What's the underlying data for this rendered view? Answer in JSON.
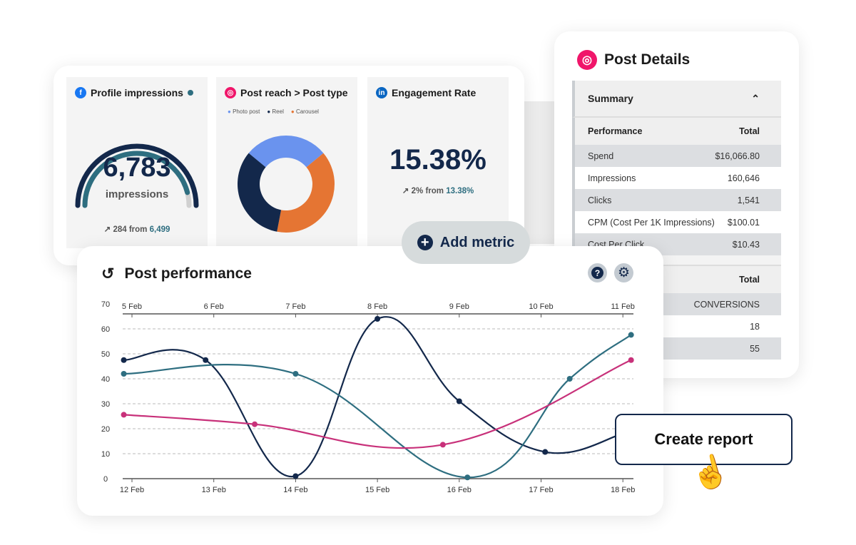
{
  "colors": {
    "navy": "#13284b",
    "teal": "#2e6e80",
    "pink": "#c8317a",
    "light_blue": "#6a93ee",
    "orange": "#e57533",
    "instagram": "#f0166a",
    "facebook": "#1877f2",
    "linkedin": "#0a66c2"
  },
  "widgets": {
    "impressions": {
      "title": "Profile impressions",
      "value": "6,783",
      "unit": "impressions",
      "change": "284",
      "from_label": "from",
      "from_value": "6,499",
      "icon": "facebook-icon",
      "gauge_fraction": 0.92
    },
    "reach": {
      "title": "Post reach > Post type",
      "icon": "instagram-icon",
      "legend": [
        "Photo post",
        "Reel",
        "Carousel"
      ],
      "chart_data": {
        "type": "pie",
        "categories": [
          "Photo post",
          "Reel",
          "Carousel"
        ],
        "values": [
          28,
          33,
          39
        ]
      }
    },
    "engagement": {
      "title": "Engagement Rate",
      "icon": "linkedin-icon",
      "value": "15.38%",
      "change": "2%",
      "from_label": "from",
      "from_value": "13.38%"
    }
  },
  "add_metric": "Add metric",
  "details": {
    "title": "Post Details",
    "section": "Summary",
    "header": [
      "Performance",
      "Total"
    ],
    "rows": [
      [
        "Spend",
        "$16,066.80"
      ],
      [
        "Impressions",
        "160,646"
      ],
      [
        "Clicks",
        "1,541"
      ],
      [
        "CPM (Cost Per 1K Impressions)",
        "$100.01"
      ],
      [
        "Cost Per Click",
        "$10.43"
      ]
    ],
    "header2": [
      "",
      "Total"
    ],
    "rows2": [
      [
        "",
        "CONVERSIONS"
      ],
      [
        "",
        "18"
      ],
      [
        "",
        "55"
      ]
    ]
  },
  "performance": {
    "title": "Post performance"
  },
  "create_report": "Create report",
  "chart_data": {
    "type": "line",
    "ylim": [
      0,
      70
    ],
    "yticks": [
      0,
      10,
      20,
      30,
      40,
      50,
      60,
      70
    ],
    "x_bottom_ticks": [
      "12 Feb",
      "13 Feb",
      "14 Feb",
      "15 Feb",
      "16 Feb",
      "17 Feb",
      "18 Feb"
    ],
    "x_top_ticks": [
      "5 Feb",
      "6 Feb",
      "7 Feb",
      "8 Feb",
      "9 Feb",
      "10 Feb",
      "11 Feb"
    ],
    "grid": true,
    "series": [
      {
        "color": "#13284b",
        "points": [
          [
            11.9,
            47.5
          ],
          [
            12.9,
            47.5
          ],
          [
            14,
            1
          ],
          [
            15,
            64
          ],
          [
            16,
            31
          ],
          [
            17.05,
            10.7
          ],
          [
            18,
            18
          ]
        ]
      },
      {
        "color": "#2e6e80",
        "points": [
          [
            11.9,
            42
          ],
          [
            14,
            42
          ],
          [
            16.1,
            0.5
          ],
          [
            17.35,
            40
          ],
          [
            18.1,
            57.6
          ]
        ]
      },
      {
        "color": "#c8317a",
        "points": [
          [
            11.9,
            25.6
          ],
          [
            13.5,
            21.8
          ],
          [
            15.8,
            13.6
          ],
          [
            18.1,
            47.5
          ]
        ]
      }
    ]
  }
}
